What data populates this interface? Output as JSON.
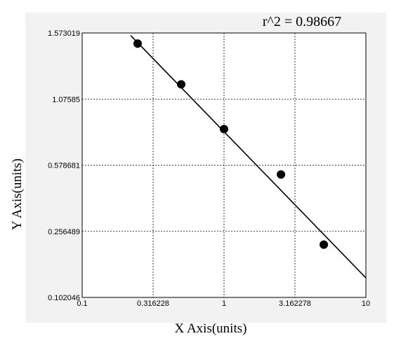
{
  "chart_data": {
    "type": "scatter",
    "annotation": "r^2  = 0.98667",
    "x_label": "X Axis(units)",
    "y_label": "Y Axis(units)",
    "xlog": true,
    "ylog": true,
    "grid": true,
    "color": "#000000",
    "x": [
      0.246,
      0.499,
      1,
      2.52,
      5.05
    ],
    "values": [
      1.48,
      1.171,
      0.812,
      0.516,
      0.213
    ],
    "fit_line": {
      "x": [
        0.22,
        10
      ],
      "y": [
        1.55,
        0.134
      ]
    },
    "xlim": [
      0.1,
      10
    ],
    "xticks": [
      0.1,
      0.316228,
      1,
      3.162278,
      10
    ],
    "ylim": [
      0.102046,
      1.573019
    ],
    "yticks": [
      0.102046,
      0.256489,
      0.578681,
      1.07585,
      1.573019
    ]
  }
}
